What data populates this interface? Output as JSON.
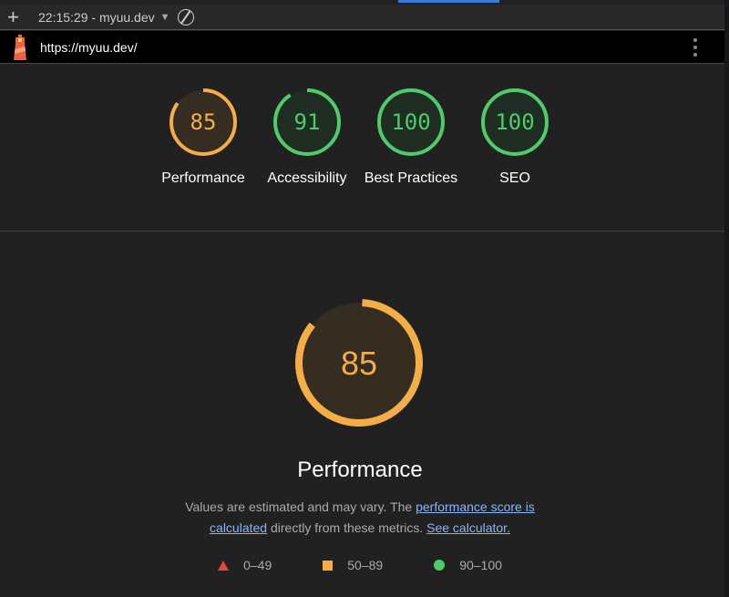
{
  "toolbar": {
    "title": "22:15:29 - myuu.dev",
    "new_label": "+"
  },
  "urlbar": {
    "url": "https://myuu.dev/"
  },
  "colors": {
    "average": "#f4ad47",
    "pass": "#4fcb6b",
    "fail": "#e8453c",
    "link": "#8ab4f8"
  },
  "scores": [
    {
      "label": "Performance",
      "value": 85,
      "rating": "average"
    },
    {
      "label": "Accessibility",
      "value": 91,
      "rating": "pass"
    },
    {
      "label": "Best Practices",
      "value": 100,
      "rating": "pass"
    },
    {
      "label": "SEO",
      "value": 100,
      "rating": "pass"
    }
  ],
  "main": {
    "score": 85,
    "title": "Performance",
    "desc_prefix": "Values are estimated and may vary. The ",
    "link1": "performance score is calculated",
    "desc_mid": " directly from these metrics. ",
    "link2": "See calculator."
  },
  "legend": [
    {
      "icon": "triangle-icon",
      "range": "0–49"
    },
    {
      "icon": "square-icon",
      "range": "50–89"
    },
    {
      "icon": "circle-icon",
      "range": "90–100"
    }
  ]
}
